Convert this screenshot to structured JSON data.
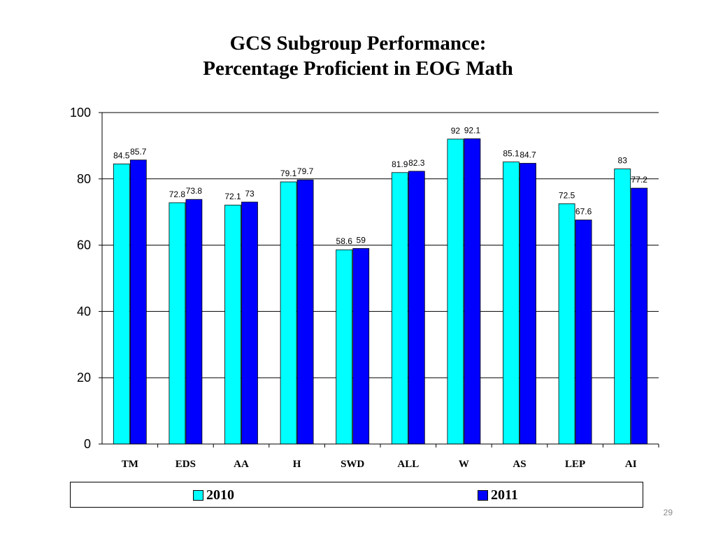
{
  "title_lines": [
    "GCS Subgroup Performance:",
    "Percentage Proficient in EOG Math"
  ],
  "page_number": "29",
  "colors": {
    "series_2010": "#00ffff",
    "series_2011": "#0000ff",
    "bar_outline": "#000000",
    "grid": "#000000"
  },
  "chart_data": {
    "type": "bar",
    "title": "GCS Subgroup Performance: Percentage Proficient in EOG Math",
    "categories": [
      "TM",
      "EDS",
      "AA",
      "H",
      "SWD",
      "ALL",
      "W",
      "AS",
      "LEP",
      "AI"
    ],
    "series": [
      {
        "name": "2010",
        "values": [
          84.5,
          72.8,
          72.1,
          79.1,
          58.6,
          81.9,
          92,
          85.1,
          72.5,
          83
        ]
      },
      {
        "name": "2011",
        "values": [
          85.7,
          73.8,
          73,
          79.7,
          59,
          82.3,
          92.1,
          84.7,
          67.6,
          77.2
        ]
      }
    ],
    "ylim": [
      0,
      100
    ],
    "yticks": [
      0,
      20,
      40,
      60,
      80,
      100
    ],
    "grid": true,
    "legend_position": "bottom",
    "xlabel": "",
    "ylabel": ""
  }
}
